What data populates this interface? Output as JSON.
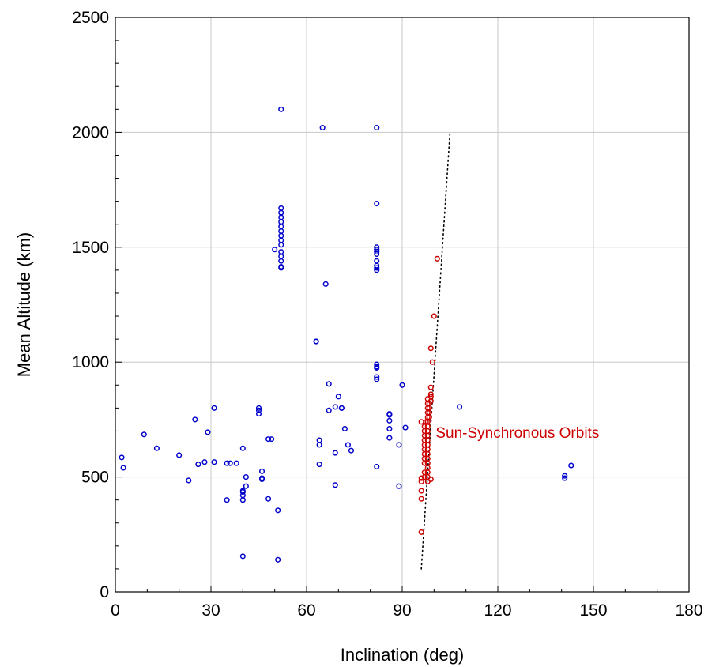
{
  "chart_data": {
    "type": "scatter",
    "title": "",
    "xlabel": "Inclination (deg)",
    "ylabel": "Mean Altitude (km)",
    "xlim": [
      0,
      180
    ],
    "ylim": [
      0,
      2500
    ],
    "xticks": [
      0,
      30,
      60,
      90,
      120,
      150,
      180
    ],
    "yticks": [
      0,
      500,
      1000,
      1500,
      2000,
      2500
    ],
    "grid": true,
    "legend": "none",
    "series": [
      {
        "color": "#0000cc",
        "marker": "open-circle",
        "points": [
          [
            2,
            585
          ],
          [
            2.5,
            540
          ],
          [
            9,
            685
          ],
          [
            13,
            625
          ],
          [
            20,
            595
          ],
          [
            23,
            485
          ],
          [
            25,
            750
          ],
          [
            26,
            555
          ],
          [
            28,
            565
          ],
          [
            29,
            695
          ],
          [
            31,
            800
          ],
          [
            31,
            565
          ],
          [
            35,
            400
          ],
          [
            35,
            560
          ],
          [
            36,
            560
          ],
          [
            38,
            560
          ],
          [
            40,
            155
          ],
          [
            40,
            625
          ],
          [
            40,
            420
          ],
          [
            40,
            435
          ],
          [
            40,
            440
          ],
          [
            40,
            400
          ],
          [
            41,
            500
          ],
          [
            41,
            460
          ],
          [
            45,
            800
          ],
          [
            45,
            790
          ],
          [
            45,
            775
          ],
          [
            46,
            525
          ],
          [
            46,
            495
          ],
          [
            46,
            490
          ],
          [
            48,
            405
          ],
          [
            48,
            665
          ],
          [
            49,
            665
          ],
          [
            50,
            1490
          ],
          [
            51,
            355
          ],
          [
            51,
            140
          ],
          [
            52,
            2100
          ],
          [
            52,
            1670
          ],
          [
            52,
            1650
          ],
          [
            52,
            1630
          ],
          [
            52,
            1610
          ],
          [
            52,
            1590
          ],
          [
            52,
            1570
          ],
          [
            52,
            1550
          ],
          [
            52,
            1530
          ],
          [
            52,
            1510
          ],
          [
            52,
            1480
          ],
          [
            52,
            1460
          ],
          [
            52,
            1440
          ],
          [
            52,
            1415
          ],
          [
            52,
            1410
          ],
          [
            63,
            1090
          ],
          [
            63,
            1090
          ],
          [
            64,
            660
          ],
          [
            64,
            640
          ],
          [
            64,
            555
          ],
          [
            65,
            2020
          ],
          [
            66,
            1340
          ],
          [
            67,
            905
          ],
          [
            67,
            790
          ],
          [
            69,
            605
          ],
          [
            69,
            465
          ],
          [
            69,
            805
          ],
          [
            70,
            850
          ],
          [
            71,
            800
          ],
          [
            71,
            800
          ],
          [
            72,
            710
          ],
          [
            73,
            640
          ],
          [
            74,
            615
          ],
          [
            82,
            1690
          ],
          [
            82,
            2020
          ],
          [
            82,
            1500
          ],
          [
            82,
            1490
          ],
          [
            82,
            1480
          ],
          [
            82,
            1470
          ],
          [
            82,
            1440
          ],
          [
            82,
            1420
          ],
          [
            82,
            1410
          ],
          [
            82,
            1400
          ],
          [
            82,
            990
          ],
          [
            82,
            980
          ],
          [
            82,
            975
          ],
          [
            82,
            935
          ],
          [
            82,
            925
          ],
          [
            82,
            545
          ],
          [
            86,
            775
          ],
          [
            86,
            770
          ],
          [
            86,
            745
          ],
          [
            86,
            710
          ],
          [
            86,
            670
          ],
          [
            89,
            460
          ],
          [
            89,
            640
          ],
          [
            90,
            900
          ],
          [
            91,
            715
          ],
          [
            108,
            805
          ],
          [
            141,
            505
          ],
          [
            141,
            495
          ],
          [
            143,
            550
          ]
        ]
      },
      {
        "color": "#cc0000",
        "marker": "open-circle",
        "points": [
          [
            96,
            260
          ],
          [
            96,
            405
          ],
          [
            96,
            440
          ],
          [
            96,
            480
          ],
          [
            96,
            495
          ],
          [
            96,
            740
          ],
          [
            97,
            500
          ],
          [
            97,
            520
          ],
          [
            97,
            560
          ],
          [
            97,
            580
          ],
          [
            97,
            600
          ],
          [
            97,
            620
          ],
          [
            97,
            640
          ],
          [
            97,
            660
          ],
          [
            97,
            680
          ],
          [
            97,
            700
          ],
          [
            97,
            720
          ],
          [
            97.5,
            740
          ],
          [
            98,
            760
          ],
          [
            98,
            780
          ],
          [
            98,
            800
          ],
          [
            98,
            820
          ],
          [
            98,
            840
          ],
          [
            98,
            480
          ],
          [
            98,
            500
          ],
          [
            98,
            520
          ],
          [
            98,
            540
          ],
          [
            98,
            560
          ],
          [
            98,
            580
          ],
          [
            98,
            600
          ],
          [
            98,
            620
          ],
          [
            98,
            640
          ],
          [
            98,
            660
          ],
          [
            98,
            680
          ],
          [
            98,
            700
          ],
          [
            98,
            720
          ],
          [
            98,
            740
          ],
          [
            98.5,
            760
          ],
          [
            98.5,
            780
          ],
          [
            98.5,
            800
          ],
          [
            98.5,
            820
          ],
          [
            99,
            830
          ],
          [
            99,
            850
          ],
          [
            99,
            860
          ],
          [
            99,
            890
          ],
          [
            99,
            490
          ],
          [
            99,
            1060
          ],
          [
            99.5,
            1000
          ],
          [
            100,
            1200
          ],
          [
            101,
            1450
          ]
        ]
      }
    ],
    "trend_line": {
      "style": "dotted",
      "color": "#000000",
      "points": [
        [
          96,
          100
        ],
        [
          105,
          2000
        ]
      ]
    },
    "annotations": [
      {
        "text": "Sun-Synchronous Orbits",
        "x": 100.5,
        "y": 670,
        "color": "#cc0000"
      }
    ]
  }
}
